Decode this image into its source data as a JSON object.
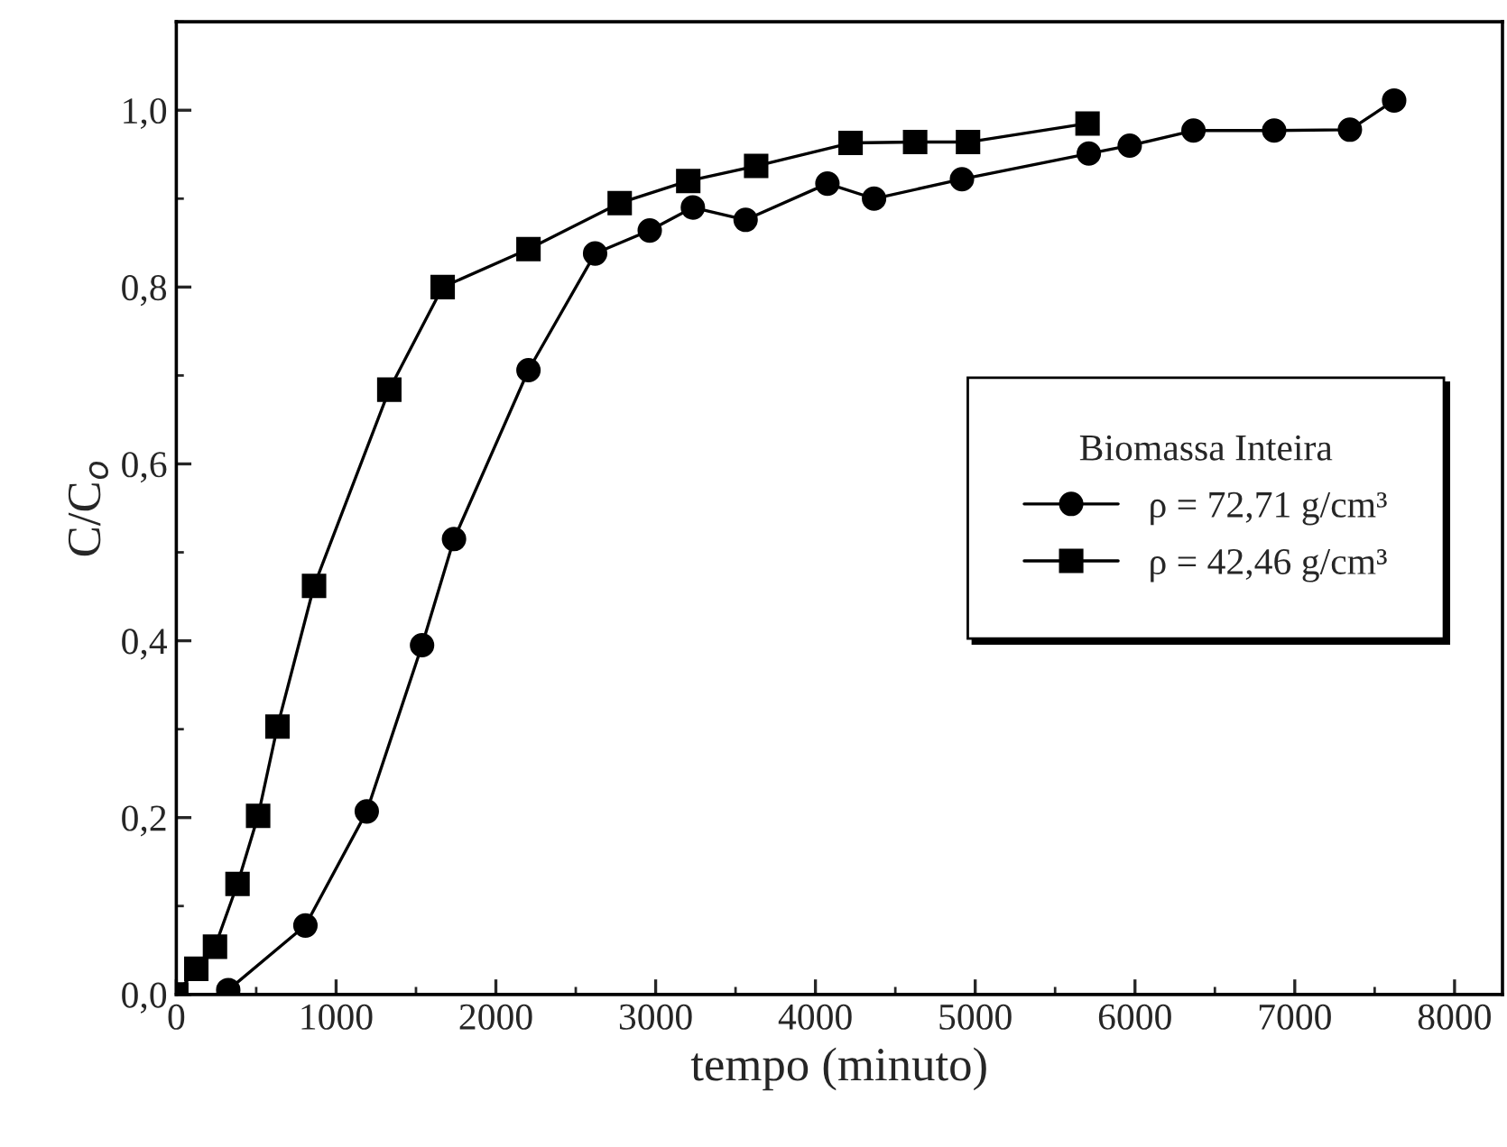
{
  "chart_data": {
    "type": "line",
    "xlabel": "tempo (minuto)",
    "ylabel": "C/C$_{o}$",
    "legend_title": "Biomassa Inteira",
    "legend": "right",
    "xlim": [
      0,
      8300
    ],
    "ylim": [
      0,
      1.1
    ],
    "xticks": [
      0,
      1000,
      2000,
      3000,
      4000,
      5000,
      6000,
      7000,
      8000
    ],
    "yticks": [
      {
        "value": 0,
        "label": "0,0"
      },
      {
        "value": 0.2,
        "label": "0,2"
      },
      {
        "value": 0.4,
        "label": "0,4"
      },
      {
        "value": 0.6,
        "label": "0,6"
      },
      {
        "value": 0.8,
        "label": "0,8"
      },
      {
        "value": 1.0,
        "label": "1,0"
      }
    ],
    "grid": false,
    "line_style": "solid",
    "series": [
      {
        "name": "ρ = 72,71 g/cm³",
        "color": "#000000",
        "marker": "circle",
        "x": [
          325,
          808,
          1192,
          1538,
          1738,
          2204,
          2621,
          2963,
          3233,
          3563,
          4075,
          4367,
          4917,
          5711,
          5967,
          6366,
          6871,
          7345,
          7622
        ],
        "values": [
          0.005,
          0.078,
          0.207,
          0.395,
          0.515,
          0.706,
          0.838,
          0.864,
          0.89,
          0.876,
          0.917,
          0.9,
          0.922,
          0.951,
          0.96,
          0.977,
          0.977,
          0.978,
          1.011
        ]
      },
      {
        "name": "ρ = 42,46 g/cm³",
        "color": "#000000",
        "marker": "square",
        "x": [
          0,
          125,
          242,
          383,
          512,
          633,
          862,
          1333,
          1667,
          2204,
          2775,
          3204,
          3629,
          4220,
          4624,
          4955,
          5703
        ],
        "values": [
          0,
          0.029,
          0.054,
          0.125,
          0.202,
          0.303,
          0.462,
          0.684,
          0.8,
          0.843,
          0.895,
          0.92,
          0.937,
          0.963,
          0.964,
          0.964,
          0.985
        ]
      }
    ]
  }
}
